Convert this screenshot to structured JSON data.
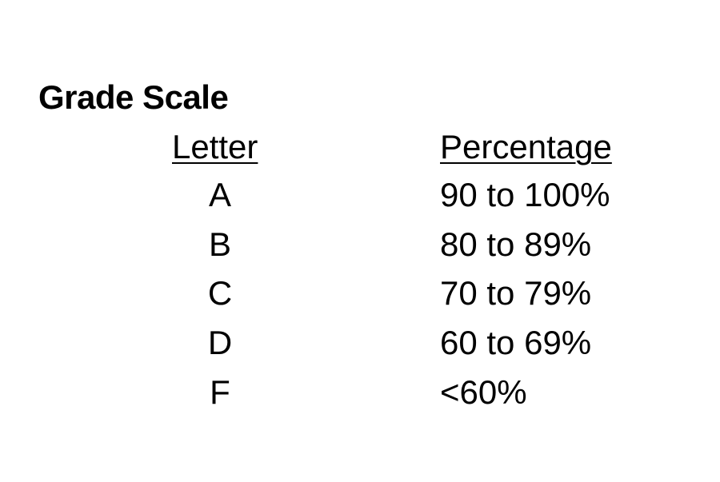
{
  "title": "Grade Scale",
  "headers": {
    "letter": "Letter",
    "percentage": "Percentage"
  },
  "rows": [
    {
      "letter": "A",
      "percentage": "90 to 100%"
    },
    {
      "letter": "B",
      "percentage": "80 to 89%"
    },
    {
      "letter": "C",
      "percentage": "70 to 79%"
    },
    {
      "letter": "D",
      "percentage": "60 to 69%"
    },
    {
      "letter": "F",
      "percentage": "<60%"
    }
  ]
}
